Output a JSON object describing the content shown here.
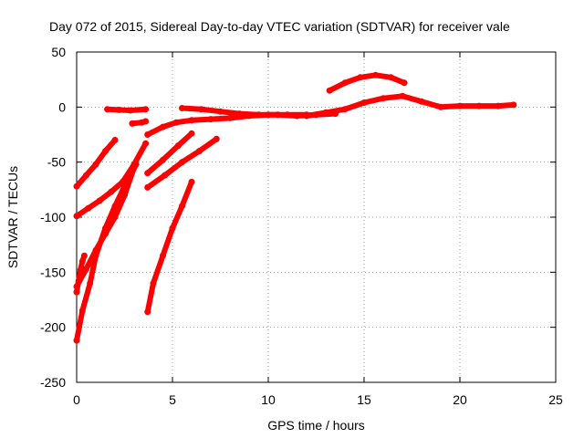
{
  "chart_data": {
    "type": "scatter",
    "title": "Day 072 of 2015, Sidereal Day-to-day VTEC variation (SDTVAR) for receiver vale",
    "xlabel": "GPS time / hours",
    "ylabel": "SDTVAR / TECUs",
    "xlim": [
      0,
      25
    ],
    "ylim": [
      -250,
      50
    ],
    "xticks": [
      0,
      5,
      10,
      15,
      20,
      25
    ],
    "yticks": [
      -250,
      -200,
      -150,
      -100,
      -50,
      0,
      50
    ],
    "grid": true,
    "legend": "none",
    "color": "#ff0000",
    "series": [
      {
        "x": [
          0.0,
          0.5,
          1.0,
          1.5,
          2.0
        ],
        "y": [
          -72,
          -62,
          -52,
          -40,
          -30
        ]
      },
      {
        "x": [
          0.0,
          0.6,
          1.2,
          1.8,
          2.4,
          3.0,
          3.6
        ],
        "y": [
          -99,
          -92,
          -85,
          -77,
          -68,
          -52,
          -33
        ]
      },
      {
        "x": [
          0.0,
          0.1,
          0.2,
          0.3,
          0.4
        ],
        "y": [
          -168,
          -158,
          -148,
          -140,
          -135
        ]
      },
      {
        "x": [
          0.0,
          0.5,
          1.0,
          1.5,
          2.0,
          2.5,
          3.0
        ],
        "y": [
          -163,
          -147,
          -130,
          -115,
          -100,
          -80,
          -55
        ]
      },
      {
        "x": [
          0.0,
          0.3,
          0.7,
          1.0,
          1.5,
          2.0,
          2.5,
          3.1
        ],
        "y": [
          -212,
          -185,
          -160,
          -135,
          -110,
          -90,
          -72,
          -52
        ]
      },
      {
        "x": [
          1.6,
          2.2,
          2.8,
          3.6
        ],
        "y": [
          -2,
          -2.5,
          -3,
          -2
        ]
      },
      {
        "x": [
          2.9,
          3.4,
          3.6
        ],
        "y": [
          -15,
          -14,
          -13
        ]
      },
      {
        "x": [
          3.7,
          4.5,
          5.2,
          6.0,
          7.0,
          8.0,
          9.0,
          10.0,
          11.0,
          12.0
        ],
        "y": [
          -25,
          -18,
          -14,
          -12,
          -11,
          -10,
          -8,
          -7,
          -7,
          -7
        ]
      },
      {
        "x": [
          5.5,
          6.5,
          7.5,
          8.5,
          9.5,
          10.5,
          11.5,
          12.5,
          13.5
        ],
        "y": [
          -1,
          -2,
          -4,
          -6,
          -7,
          -7,
          -8,
          -7,
          -6
        ]
      },
      {
        "x": [
          3.7,
          4.5,
          5.3,
          6.0
        ],
        "y": [
          -60,
          -48,
          -35,
          -24
        ]
      },
      {
        "x": [
          3.7,
          4.6,
          5.5,
          6.4,
          7.3
        ],
        "y": [
          -73,
          -62,
          -50,
          -40,
          -29
        ]
      },
      {
        "x": [
          3.7,
          4.0,
          4.5,
          5.0,
          5.5,
          6.0
        ],
        "y": [
          -186,
          -160,
          -135,
          -110,
          -90,
          -68
        ]
      },
      {
        "x": [
          12.0,
          13.0,
          14.0,
          15.0,
          16.0,
          17.0,
          18.0,
          19.0,
          20.0,
          21.0,
          22.0,
          22.8
        ],
        "y": [
          -8,
          -5,
          -2,
          4,
          8,
          10,
          5,
          0,
          1,
          1,
          1,
          2
        ]
      },
      {
        "x": [
          13.2,
          14.0,
          14.8,
          15.6,
          16.4,
          17.1
        ],
        "y": [
          15,
          22,
          27,
          29,
          27,
          22
        ]
      }
    ]
  }
}
